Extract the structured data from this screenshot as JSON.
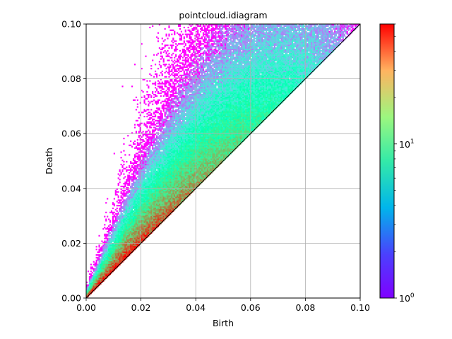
{
  "chart_data": {
    "type": "heatmap",
    "title": "pointcloud.idiagram",
    "xlabel": "Birth",
    "ylabel": "Death",
    "xlim": [
      0.0,
      0.1
    ],
    "ylim": [
      0.0,
      0.1
    ],
    "x_ticks": [
      "0.00",
      "0.02",
      "0.04",
      "0.06",
      "0.08",
      "0.10"
    ],
    "y_ticks": [
      "0.00",
      "0.02",
      "0.04",
      "0.06",
      "0.08",
      "0.10"
    ],
    "grid": true,
    "colormap": "rainbow",
    "color_scale": "log",
    "colorbar": {
      "vmin": 1,
      "vmax": 60,
      "major_ticks": [
        {
          "value": 1,
          "base": "10",
          "exp": "0"
        },
        {
          "value": 10,
          "base": "10",
          "exp": "1"
        }
      ],
      "minor_ticks": [
        2,
        3,
        4,
        5,
        6,
        7,
        8,
        9,
        20,
        30,
        40,
        50,
        60
      ]
    },
    "description": "2D histogram of persistence diagram points (birth, death); counts concentrated along the diagonal death = birth, high density (orange/red) near the origin for birth < 0.015, sparse purple cells spreading up to death ≈ 0.1."
  }
}
